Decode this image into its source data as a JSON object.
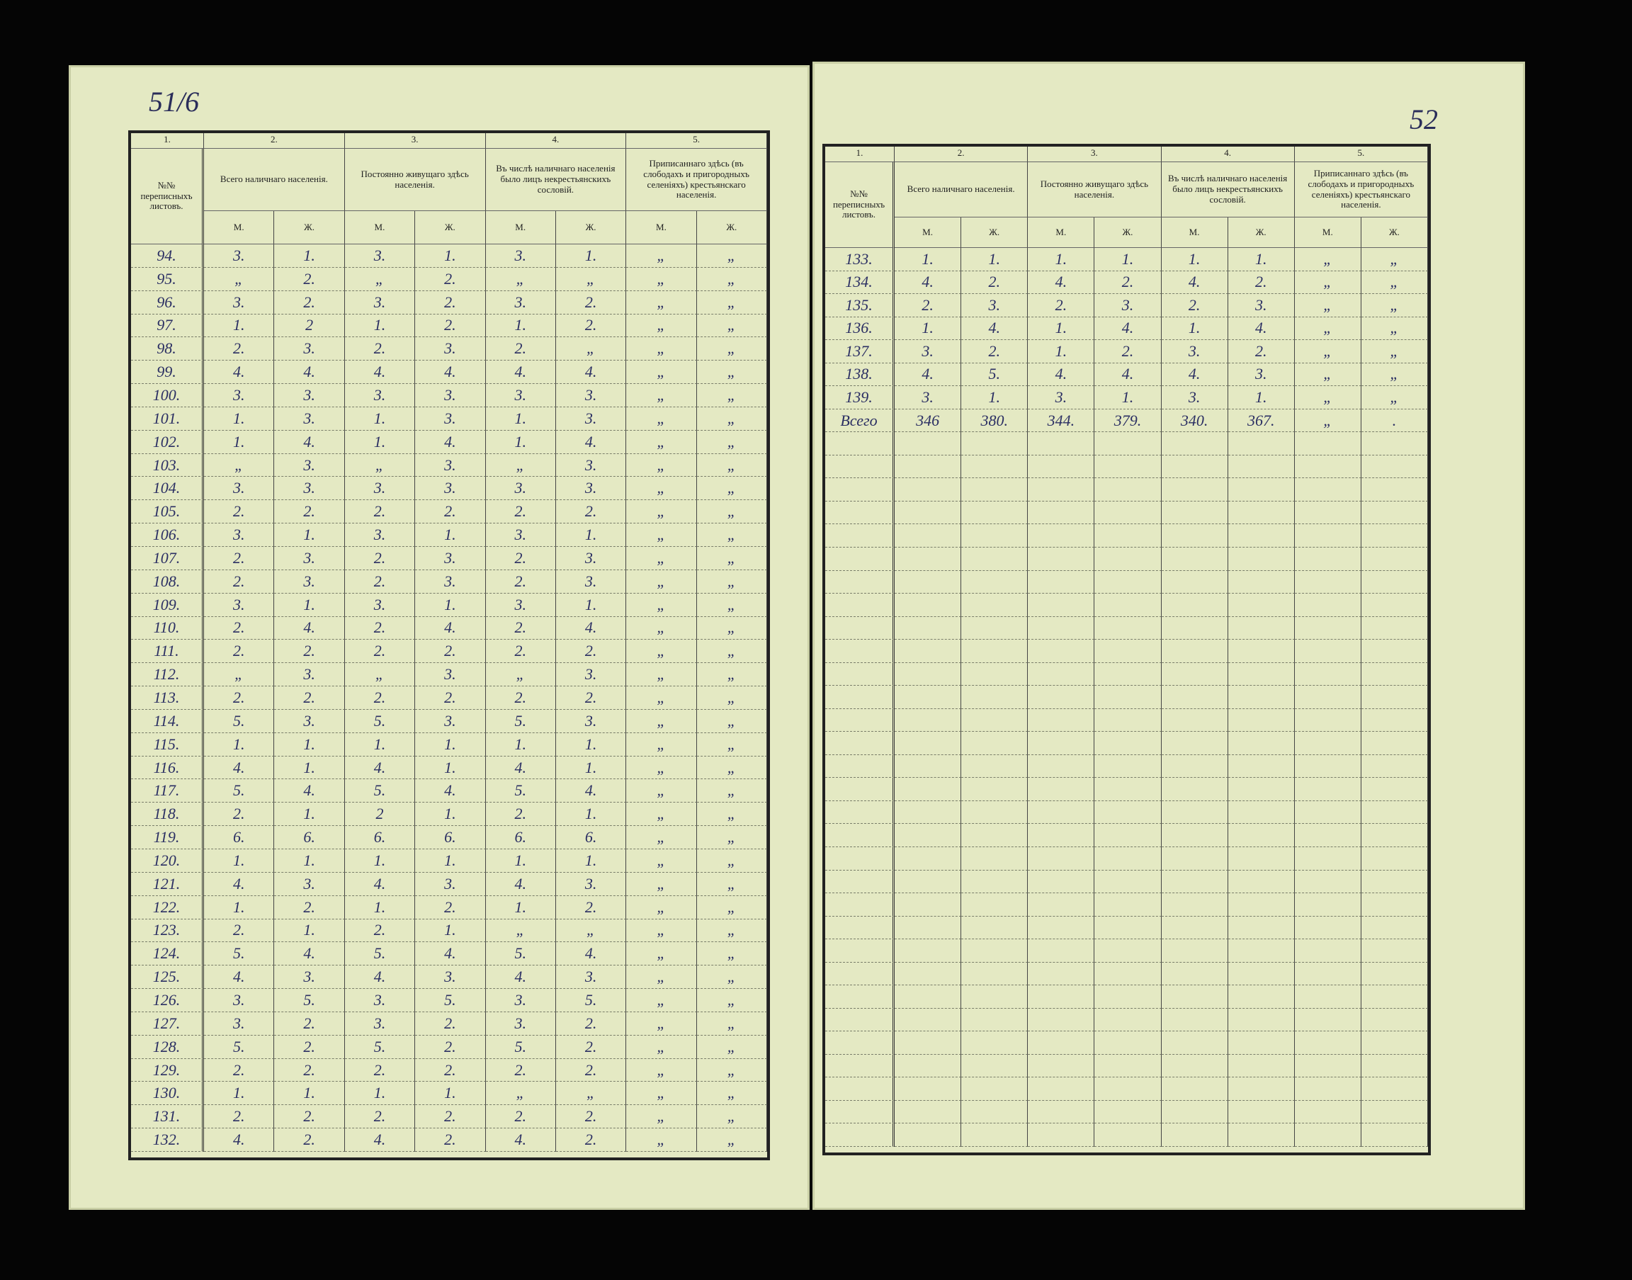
{
  "table_header": {
    "numbers": [
      "1.",
      "2.",
      "3.",
      "4.",
      "5."
    ],
    "titles": [
      "№№ переписныхъ листовъ.",
      "Всего наличнаго населенія.",
      "Постоянно живущаго здѣсь населенія.",
      "Въ числѣ наличнаго населенія было лицъ некрестьянскихъ сословій.",
      "Приписаннаго здѣсь (въ слободахъ и пригородныхъ селеніяхъ) крестьянскаго населенія."
    ],
    "sub": [
      "М.",
      "Ж."
    ]
  },
  "left_page": {
    "page_number": "51/6",
    "rows": [
      [
        "94.",
        "3.",
        "1.",
        "3.",
        "1.",
        "3.",
        "1.",
        "„",
        "„"
      ],
      [
        "95.",
        "„",
        "2.",
        "„",
        "2.",
        "„",
        "„",
        "„",
        "„"
      ],
      [
        "96.",
        "3.",
        "2.",
        "3.",
        "2.",
        "3.",
        "2.",
        "„",
        "„"
      ],
      [
        "97.",
        "1.",
        "2",
        "1.",
        "2.",
        "1.",
        "2.",
        "„",
        "„"
      ],
      [
        "98.",
        "2.",
        "3.",
        "2.",
        "3.",
        "2.",
        "„",
        "„",
        "„"
      ],
      [
        "99.",
        "4.",
        "4.",
        "4.",
        "4.",
        "4.",
        "4.",
        "„",
        "„"
      ],
      [
        "100.",
        "3.",
        "3.",
        "3.",
        "3.",
        "3.",
        "3.",
        "„",
        "„"
      ],
      [
        "101.",
        "1.",
        "3.",
        "1.",
        "3.",
        "1.",
        "3.",
        "„",
        "„"
      ],
      [
        "102.",
        "1.",
        "4.",
        "1.",
        "4.",
        "1.",
        "4.",
        "„",
        "„"
      ],
      [
        "103.",
        "„",
        "3.",
        "„",
        "3.",
        "„",
        "3.",
        "„",
        "„"
      ],
      [
        "104.",
        "3.",
        "3.",
        "3.",
        "3.",
        "3.",
        "3.",
        "„",
        "„"
      ],
      [
        "105.",
        "2.",
        "2.",
        "2.",
        "2.",
        "2.",
        "2.",
        "„",
        "„"
      ],
      [
        "106.",
        "3.",
        "1.",
        "3.",
        "1.",
        "3.",
        "1.",
        "„",
        "„"
      ],
      [
        "107.",
        "2.",
        "3.",
        "2.",
        "3.",
        "2.",
        "3.",
        "„",
        "„"
      ],
      [
        "108.",
        "2.",
        "3.",
        "2.",
        "3.",
        "2.",
        "3.",
        "„",
        "„"
      ],
      [
        "109.",
        "3.",
        "1.",
        "3.",
        "1.",
        "3.",
        "1.",
        "„",
        "„"
      ],
      [
        "110.",
        "2.",
        "4.",
        "2.",
        "4.",
        "2.",
        "4.",
        "„",
        "„"
      ],
      [
        "111.",
        "2.",
        "2.",
        "2.",
        "2.",
        "2.",
        "2.",
        "„",
        "„"
      ],
      [
        "112.",
        "„",
        "3.",
        "„",
        "3.",
        "„",
        "3.",
        "„",
        "„"
      ],
      [
        "113.",
        "2.",
        "2.",
        "2.",
        "2.",
        "2.",
        "2.",
        "„",
        "„"
      ],
      [
        "114.",
        "5.",
        "3.",
        "5.",
        "3.",
        "5.",
        "3.",
        "„",
        "„"
      ],
      [
        "115.",
        "1.",
        "1.",
        "1.",
        "1.",
        "1.",
        "1.",
        "„",
        "„"
      ],
      [
        "116.",
        "4.",
        "1.",
        "4.",
        "1.",
        "4.",
        "1.",
        "„",
        "„"
      ],
      [
        "117.",
        "5.",
        "4.",
        "5.",
        "4.",
        "5.",
        "4.",
        "„",
        "„"
      ],
      [
        "118.",
        "2.",
        "1.",
        "2",
        "1.",
        "2.",
        "1.",
        "„",
        "„"
      ],
      [
        "119.",
        "6.",
        "6.",
        "6.",
        "6.",
        "6.",
        "6.",
        "„",
        "„"
      ],
      [
        "120.",
        "1.",
        "1.",
        "1.",
        "1.",
        "1.",
        "1.",
        "„",
        "„"
      ],
      [
        "121.",
        "4.",
        "3.",
        "4.",
        "3.",
        "4.",
        "3.",
        "„",
        "„"
      ],
      [
        "122.",
        "1.",
        "2.",
        "1.",
        "2.",
        "1.",
        "2.",
        "„",
        "„"
      ],
      [
        "123.",
        "2.",
        "1.",
        "2.",
        "1.",
        "„",
        "„",
        "„",
        "„"
      ],
      [
        "124.",
        "5.",
        "4.",
        "5.",
        "4.",
        "5.",
        "4.",
        "„",
        "„"
      ],
      [
        "125.",
        "4.",
        "3.",
        "4.",
        "3.",
        "4.",
        "3.",
        "„",
        "„"
      ],
      [
        "126.",
        "3.",
        "5.",
        "3.",
        "5.",
        "3.",
        "5.",
        "„",
        "„"
      ],
      [
        "127.",
        "3.",
        "2.",
        "3.",
        "2.",
        "3.",
        "2.",
        "„",
        "„"
      ],
      [
        "128.",
        "5.",
        "2.",
        "5.",
        "2.",
        "5.",
        "2.",
        "„",
        "„"
      ],
      [
        "129.",
        "2.",
        "2.",
        "2.",
        "2.",
        "2.",
        "2.",
        "„",
        "„"
      ],
      [
        "130.",
        "1.",
        "1.",
        "1.",
        "1.",
        "„",
        "„",
        "„",
        "„"
      ],
      [
        "131.",
        "2.",
        "2.",
        "2.",
        "2.",
        "2.",
        "2.",
        "„",
        "„"
      ],
      [
        "132.",
        "4.",
        "2.",
        "4.",
        "2.",
        "4.",
        "2.",
        "„",
        "„"
      ]
    ]
  },
  "right_page": {
    "page_number": "52",
    "rows": [
      [
        "133.",
        "1.",
        "1.",
        "1.",
        "1.",
        "1.",
        "1.",
        "„",
        "„"
      ],
      [
        "134.",
        "4.",
        "2.",
        "4.",
        "2.",
        "4.",
        "2.",
        "„",
        "„"
      ],
      [
        "135.",
        "2.",
        "3.",
        "2.",
        "3.",
        "2.",
        "3.",
        "„",
        "„"
      ],
      [
        "136.",
        "1.",
        "4.",
        "1.",
        "4.",
        "1.",
        "4.",
        "„",
        "„"
      ],
      [
        "137.",
        "3.",
        "2.",
        "1.",
        "2.",
        "3.",
        "2.",
        "„",
        "„"
      ],
      [
        "138.",
        "4.",
        "5.",
        "4.",
        "4.",
        "4.",
        "3.",
        "„",
        "„"
      ],
      [
        "139.",
        "3.",
        "1.",
        "3.",
        "1.",
        "3.",
        "1.",
        "„",
        "„"
      ],
      [
        "Всего",
        "346",
        "380.",
        "344.",
        "379.",
        "340.",
        "367.",
        "„",
        "."
      ]
    ]
  }
}
